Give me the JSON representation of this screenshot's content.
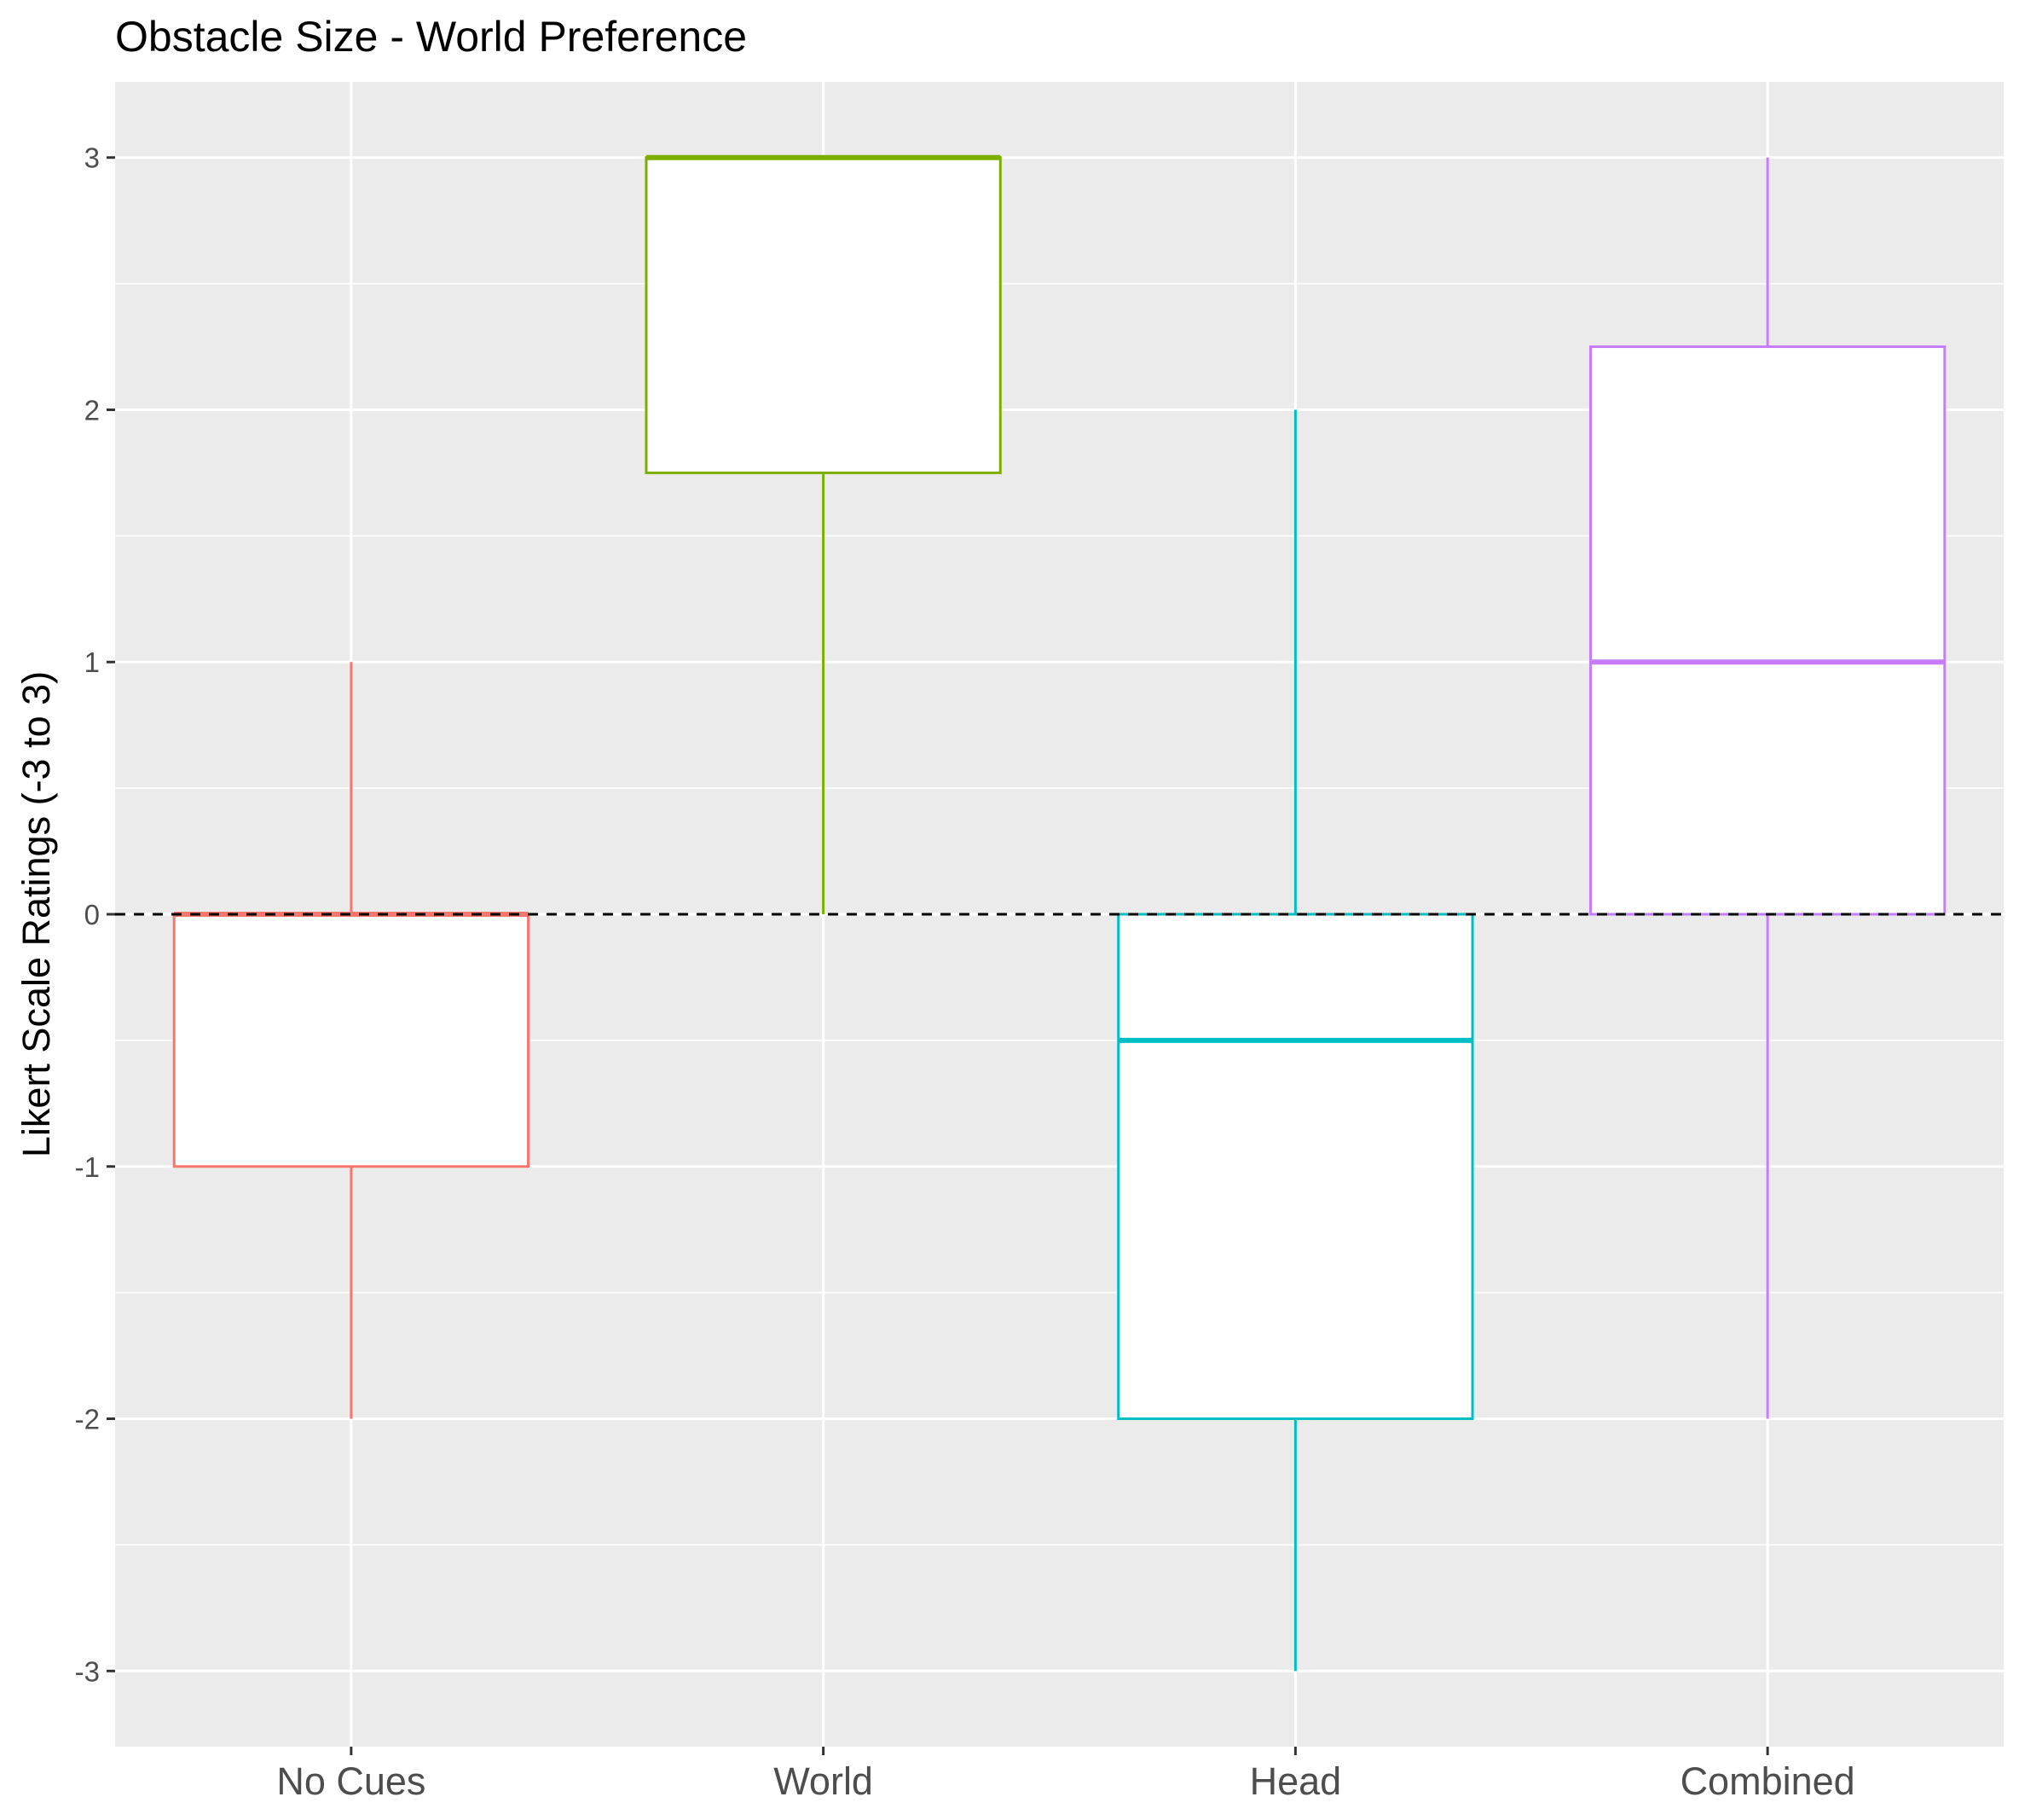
{
  "chart_data": {
    "type": "boxplot",
    "title": "Obstacle Size - World Preference",
    "xlabel": "",
    "ylabel": "Likert Scale Ratings (-3 to 3)",
    "ylim": [
      -3.3,
      3.3
    ],
    "y_ticks": [
      -3,
      -2,
      -1,
      0,
      1,
      2,
      3
    ],
    "y_tick_labels": [
      "-3",
      "-2",
      "-1",
      "0",
      "1",
      "2",
      "3"
    ],
    "grid": true,
    "legend": "none",
    "reference_line": {
      "y": 0,
      "style": "dashed",
      "color": "#000000"
    },
    "categories": [
      "No Cues",
      "World",
      "Head",
      "Combined"
    ],
    "boxes": [
      {
        "category": "No Cues",
        "whisker_low": -2,
        "q1": -1,
        "median": 0,
        "q3": 0,
        "whisker_high": 1,
        "color": "#F8766D"
      },
      {
        "category": "World",
        "whisker_low": 0,
        "q1": 1.75,
        "median": 3,
        "q3": 3,
        "whisker_high": 3,
        "color": "#7CAE00"
      },
      {
        "category": "Head",
        "whisker_low": -3,
        "q1": -2,
        "median": -0.5,
        "q3": 0,
        "whisker_high": 2,
        "color": "#00BFC4"
      },
      {
        "category": "Combined",
        "whisker_low": -2,
        "q1": 0,
        "median": 1,
        "q3": 2.25,
        "whisker_high": 3,
        "color": "#C77CFF"
      }
    ]
  }
}
